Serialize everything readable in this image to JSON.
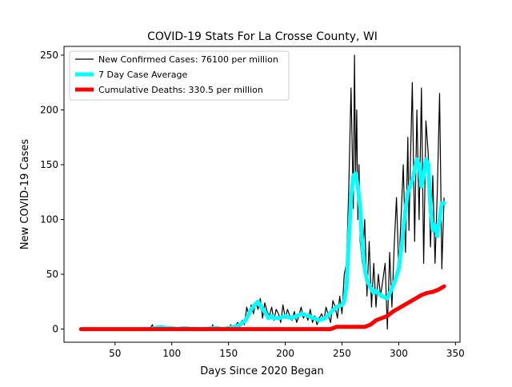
{
  "chart_data": {
    "type": "line",
    "title": "COVID-19 Stats For La Crosse County, WI",
    "xlabel": "Days Since 2020 Began",
    "ylabel": "New COVID-19 Cases",
    "xlim": [
      5,
      354
    ],
    "ylim": [
      -12,
      258
    ],
    "xticks": [
      50,
      100,
      150,
      200,
      250,
      300,
      350
    ],
    "yticks": [
      0,
      50,
      100,
      150,
      200,
      250
    ],
    "legend_position": "top-left",
    "grid": false,
    "series": [
      {
        "name": "New Confirmed Cases: 76100 per million",
        "color": "#000000",
        "style": "thin",
        "x": [
          20,
          40,
          60,
          80,
          83,
          84,
          85,
          88,
          90,
          92,
          95,
          100,
          105,
          110,
          115,
          120,
          125,
          130,
          135,
          136,
          137,
          138,
          140,
          145,
          150,
          152,
          154,
          156,
          158,
          160,
          162,
          164,
          166,
          168,
          170,
          172,
          174,
          176,
          178,
          180,
          182,
          184,
          186,
          188,
          190,
          192,
          194,
          196,
          198,
          200,
          202,
          204,
          206,
          208,
          210,
          212,
          214,
          216,
          218,
          220,
          222,
          224,
          226,
          228,
          230,
          232,
          234,
          236,
          238,
          240,
          242,
          244,
          246,
          248,
          250,
          252,
          254,
          256,
          258,
          260,
          261,
          262,
          263,
          264,
          265,
          266,
          268,
          270,
          272,
          274,
          276,
          278,
          280,
          282,
          284,
          286,
          288,
          290,
          292,
          294,
          296,
          298,
          300,
          302,
          304,
          306,
          308,
          309,
          310,
          312,
          314,
          316,
          318,
          320,
          322,
          324,
          326,
          328,
          330,
          332,
          334,
          336,
          338,
          340
        ],
        "values": [
          0,
          0,
          0,
          0,
          4,
          0,
          0,
          2,
          0,
          3,
          1,
          0,
          0,
          0,
          0,
          1,
          0,
          0,
          0,
          4,
          0,
          0,
          0,
          1,
          0,
          4,
          0,
          3,
          6,
          2,
          8,
          4,
          20,
          12,
          22,
          14,
          25,
          18,
          28,
          10,
          24,
          16,
          12,
          20,
          8,
          18,
          14,
          6,
          22,
          10,
          18,
          12,
          8,
          16,
          6,
          12,
          20,
          10,
          14,
          8,
          18,
          6,
          12,
          4,
          10,
          14,
          8,
          20,
          12,
          6,
          26,
          20,
          10,
          30,
          14,
          50,
          60,
          130,
          220,
          110,
          250,
          140,
          200,
          100,
          150,
          80,
          60,
          100,
          30,
          80,
          20,
          60,
          20,
          50,
          30,
          45,
          60,
          0,
          70,
          20,
          75,
          120,
          55,
          100,
          150,
          70,
          175,
          90,
          140,
          225,
          80,
          200,
          100,
          220,
          60,
          190,
          160,
          75,
          140,
          60,
          125,
          215,
          55,
          120
        ]
      },
      {
        "name": "7 Day Case Average",
        "color": "#00ffff",
        "style": "thick",
        "x": [
          80,
          85,
          90,
          95,
          100,
          105,
          110,
          120,
          130,
          135,
          140,
          145,
          150,
          155,
          160,
          165,
          170,
          173,
          176,
          178,
          180,
          182,
          185,
          188,
          190,
          195,
          200,
          205,
          210,
          215,
          220,
          225,
          230,
          235,
          240,
          245,
          250,
          252,
          254,
          256,
          258,
          260,
          262,
          264,
          266,
          268,
          270,
          272,
          275,
          278,
          280,
          285,
          290,
          293,
          296,
          300,
          303,
          306,
          308,
          310,
          313,
          316,
          318,
          320,
          322,
          324,
          326,
          328,
          330,
          332,
          334,
          336,
          338,
          340
        ],
        "values": [
          0,
          1,
          2,
          1,
          1,
          0,
          1,
          0,
          0,
          1,
          1,
          0,
          1,
          2,
          4,
          8,
          18,
          22,
          25,
          22,
          18,
          16,
          10,
          12,
          10,
          10,
          12,
          10,
          12,
          14,
          12,
          10,
          8,
          10,
          15,
          20,
          22,
          25,
          40,
          80,
          120,
          140,
          142,
          130,
          110,
          75,
          55,
          45,
          38,
          33,
          35,
          30,
          28,
          35,
          42,
          55,
          80,
          110,
          125,
          130,
          140,
          155,
          150,
          130,
          140,
          155,
          150,
          110,
          90,
          95,
          85,
          100,
          115,
          115
        ]
      },
      {
        "name": "Cumulative Deaths: 330.5 per million",
        "color": "#ff0000",
        "style": "thick",
        "x": [
          20,
          50,
          100,
          150,
          200,
          240,
          245,
          250,
          260,
          270,
          275,
          280,
          285,
          290,
          295,
          300,
          305,
          310,
          315,
          320,
          325,
          330,
          335,
          340
        ],
        "values": [
          0,
          0,
          0,
          0,
          0,
          0,
          2,
          2,
          2,
          2,
          4,
          8,
          10,
          12,
          16,
          19,
          22,
          25,
          28,
          31,
          33,
          34,
          36,
          39
        ]
      }
    ]
  }
}
